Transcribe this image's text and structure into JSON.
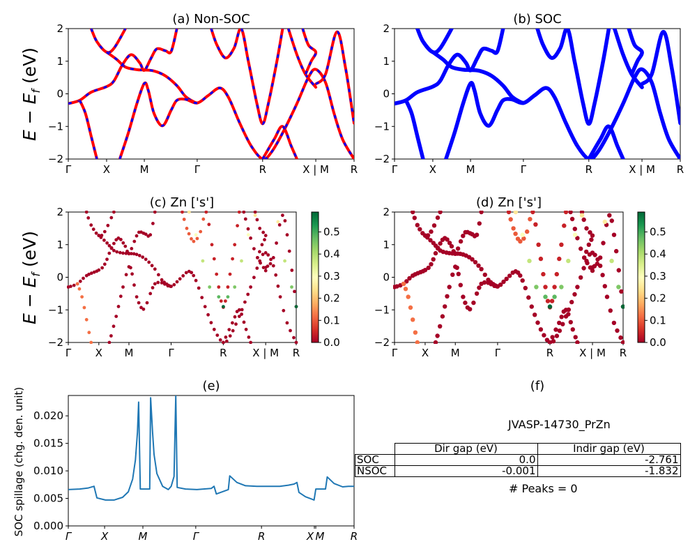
{
  "figure": {
    "panels": {
      "a": {
        "title": "(a) Non-SOC"
      },
      "b": {
        "title": "(b) SOC"
      },
      "c": {
        "title": "(c)  Zn ['s']"
      },
      "d": {
        "title": "(d) Zn ['s']"
      },
      "e": {
        "title": "(e)"
      },
      "f": {
        "title": "(f)"
      }
    },
    "band_ylabel": "E − E_f (eV)",
    "colors": {
      "nonsoc_line": "#ff0000",
      "nonsoc_dash": "#0000ff",
      "soc_line": "#0000ff",
      "spillage_line": "#1f77b4",
      "cmap_low": "#a50026",
      "cmap_mid": "#ffffbf",
      "cmap_high": "#006837"
    }
  },
  "chart_data": [
    {
      "id": "a",
      "type": "line",
      "title": "(a) Non-SOC",
      "xlabel": "",
      "ylabel": "E − E_f (eV)",
      "ylim": [
        -2,
        2
      ],
      "yticks": [
        "2",
        "1",
        "0",
        "−1",
        "−2"
      ],
      "ytick_values": [
        2,
        1,
        0,
        -1,
        -2
      ],
      "xticks": [
        "Γ",
        "X",
        "M",
        "Γ",
        "R",
        "X | M",
        "R"
      ],
      "xtick_positions": [
        0,
        0.134,
        0.266,
        0.451,
        0.68,
        0.866,
        1.0
      ],
      "style": "red line with blue dashes",
      "series": [
        {
          "name": "band-1",
          "points": [
            [
              0.08,
              2.0
            ],
            [
              0.1,
              1.6
            ],
            [
              0.134,
              1.28
            ],
            [
              0.16,
              1.4
            ],
            [
              0.2,
              2.0
            ]
          ]
        },
        {
          "name": "band-2",
          "points": [
            [
              0.134,
              1.28
            ],
            [
              0.17,
              1.05
            ],
            [
              0.2,
              0.82
            ],
            [
              0.24,
              0.74
            ],
            [
              0.266,
              0.73
            ],
            [
              0.3,
              0.7
            ],
            [
              0.34,
              0.55
            ],
            [
              0.38,
              0.25
            ],
            [
              0.41,
              -0.08
            ],
            [
              0.44,
              -0.25
            ],
            [
              0.451,
              -0.28
            ]
          ]
        },
        {
          "name": "band-3",
          "points": [
            [
              0,
              -0.3
            ],
            [
              0.04,
              -0.2
            ],
            [
              0.08,
              0.05
            ],
            [
              0.134,
              0.22
            ],
            [
              0.16,
              0.4
            ],
            [
              0.19,
              0.9
            ],
            [
              0.22,
              1.2
            ],
            [
              0.25,
              0.95
            ],
            [
              0.266,
              0.72
            ],
            [
              0.29,
              1.1
            ],
            [
              0.31,
              1.38
            ],
            [
              0.34,
              1.32
            ],
            [
              0.36,
              1.3
            ],
            [
              0.38,
              2.0
            ]
          ]
        },
        {
          "name": "band-4",
          "points": [
            [
              0.04,
              -0.2
            ],
            [
              0.06,
              -0.6
            ],
            [
              0.08,
              -1.3
            ],
            [
              0.1,
              -2.0
            ]
          ]
        },
        {
          "name": "band-5",
          "points": [
            [
              0.18,
              -2.0
            ],
            [
              0.21,
              -1.2
            ],
            [
              0.24,
              -0.3
            ],
            [
              0.266,
              0.32
            ],
            [
              0.28,
              0.1
            ],
            [
              0.3,
              -0.6
            ],
            [
              0.33,
              -0.98
            ],
            [
              0.36,
              -0.5
            ],
            [
              0.38,
              -0.2
            ],
            [
              0.41,
              -0.17
            ],
            [
              0.451,
              -0.28
            ],
            [
              0.49,
              -0.05
            ],
            [
              0.53,
              0.18
            ],
            [
              0.56,
              -0.1
            ],
            [
              0.6,
              -0.9
            ],
            [
              0.64,
              -1.6
            ],
            [
              0.68,
              -2.0
            ],
            [
              0.71,
              -1.8
            ],
            [
              0.75,
              -1.2
            ],
            [
              0.8,
              -0.3
            ],
            [
              0.84,
              0.5
            ],
            [
              0.866,
              0.75
            ],
            [
              0.9,
              0.35
            ],
            [
              0.93,
              -0.6
            ],
            [
              0.96,
              -1.4
            ],
            [
              1.0,
              -2.0
            ]
          ]
        },
        {
          "name": "band-6",
          "points": [
            [
              0.5,
              2.0
            ],
            [
              0.52,
              1.5
            ],
            [
              0.55,
              1.1
            ],
            [
              0.58,
              1.4
            ],
            [
              0.605,
              2.0
            ],
            [
              0.63,
              1.0
            ],
            [
              0.66,
              -0.3
            ],
            [
              0.68,
              -0.92
            ],
            [
              0.7,
              -0.3
            ],
            [
              0.73,
              1.0
            ],
            [
              0.75,
              2.0
            ]
          ]
        },
        {
          "name": "band-7",
          "points": [
            [
              0.68,
              -2.0
            ],
            [
              0.72,
              -1.4
            ],
            [
              0.75,
              -1.0
            ],
            [
              0.78,
              -1.6
            ],
            [
              0.8,
              -2.0
            ]
          ]
        },
        {
          "name": "band-8",
          "points": [
            [
              0.77,
              2.0
            ],
            [
              0.8,
              1.2
            ],
            [
              0.83,
              0.6
            ],
            [
              0.866,
              0.2
            ]
          ]
        },
        {
          "name": "band-9",
          "points": [
            [
              0.82,
              2.0
            ],
            [
              0.84,
              1.5
            ],
            [
              0.866,
              1.28
            ],
            [
              0.85,
              1.0
            ],
            [
              0.83,
              0.6
            ]
          ]
        },
        {
          "name": "band-10",
          "points": [
            [
              0.866,
              0.3
            ],
            [
              0.9,
              0.6
            ],
            [
              0.94,
              1.9
            ],
            [
              0.97,
              0.8
            ],
            [
              1.0,
              -0.9
            ]
          ]
        }
      ]
    },
    {
      "id": "b",
      "type": "line",
      "title": "(b) SOC",
      "ylim": [
        -2,
        2
      ],
      "yticks": [
        "2",
        "1",
        "0",
        "−1",
        "−2"
      ],
      "ytick_values": [
        2,
        1,
        0,
        -1,
        -2
      ],
      "xticks": [
        "Γ",
        "X",
        "M",
        "Γ",
        "R",
        "X | M",
        "R"
      ],
      "xtick_positions": [
        0,
        0.134,
        0.266,
        0.451,
        0.68,
        0.866,
        1.0
      ],
      "style": "thick blue lines",
      "series_ref": "same band topology as (a), spin-orbit split"
    },
    {
      "id": "c",
      "type": "scatter",
      "title": "(c)  Zn ['s']",
      "ylim": [
        -2,
        2
      ],
      "yticks": [
        "2",
        "1",
        "0",
        "−1",
        "−2"
      ],
      "ytick_values": [
        2,
        1,
        0,
        -1,
        -2
      ],
      "xticks": [
        "Γ",
        "X",
        "M",
        "Γ",
        "R",
        "X | M",
        "R"
      ],
      "xtick_positions": [
        0,
        0.134,
        0.266,
        0.451,
        0.68,
        0.866,
        1.0
      ],
      "colorbar": {
        "min": 0.0,
        "max": 0.59,
        "ticks": [
          "0.0",
          "0.1",
          "0.2",
          "0.3",
          "0.4",
          "0.5"
        ],
        "tick_values": [
          0,
          0.1,
          0.2,
          0.3,
          0.4,
          0.5
        ],
        "colormap": "RdYlGn"
      },
      "highlight_band": {
        "name": "Zn-s band",
        "points": [
          [
            0.53,
            2.0,
            0.25
          ],
          [
            0.56,
            1.3,
            0.3
          ],
          [
            0.59,
            0.5,
            0.38
          ],
          [
            0.62,
            -0.3,
            0.45
          ],
          [
            0.66,
            -0.6,
            0.48
          ],
          [
            0.68,
            -0.9,
            0.59
          ],
          [
            0.7,
            -0.6,
            0.48
          ],
          [
            0.73,
            -0.3,
            0.45
          ],
          [
            0.76,
            0.5,
            0.38
          ],
          [
            0.79,
            1.3,
            0.3
          ],
          [
            0.82,
            1.9,
            0.25
          ],
          [
            0.92,
            1.7,
            0.26
          ],
          [
            0.95,
            0.5,
            0.38
          ],
          [
            0.98,
            -0.3,
            0.45
          ],
          [
            1.0,
            -0.9,
            0.59
          ]
        ]
      }
    },
    {
      "id": "d",
      "type": "scatter",
      "title": "(d) Zn ['s']",
      "ylim": [
        -2,
        2
      ],
      "yticks": [
        "2",
        "1",
        "0",
        "−1",
        "−2"
      ],
      "ytick_values": [
        2,
        1,
        0,
        -1,
        -2
      ],
      "xticks": [
        "Γ",
        "X",
        "M",
        "Γ",
        "R",
        "X | M",
        "R"
      ],
      "xtick_positions": [
        0,
        0.134,
        0.266,
        0.451,
        0.68,
        0.866,
        1.0
      ],
      "colorbar": {
        "min": 0.0,
        "max": 0.59,
        "ticks": [
          "0.0",
          "0.1",
          "0.2",
          "0.3",
          "0.4",
          "0.5"
        ],
        "tick_values": [
          0,
          0.1,
          0.2,
          0.3,
          0.4,
          0.5
        ],
        "colormap": "RdYlGn"
      }
    },
    {
      "id": "e",
      "type": "line",
      "title": "(e)",
      "xlabel": "",
      "ylabel": "SOC spillage (chg. den. unit)",
      "ylim": [
        0,
        0.0237
      ],
      "yticks": [
        "0.000",
        "0.005",
        "0.010",
        "0.015",
        "0.020"
      ],
      "ytick_values": [
        0,
        0.005,
        0.01,
        0.015,
        0.02
      ],
      "xticks": [
        "Γ",
        "X",
        "M",
        "Γ",
        "R",
        "X",
        "M",
        "R"
      ],
      "xtick_positions": [
        0,
        0.127,
        0.261,
        0.446,
        0.676,
        0.861,
        0.866,
        1.0
      ],
      "series": [
        {
          "name": "spillage",
          "points": [
            [
              0,
              0.0066
            ],
            [
              0.04,
              0.0067
            ],
            [
              0.07,
              0.0069
            ],
            [
              0.09,
              0.0072
            ],
            [
              0.1,
              0.0051
            ],
            [
              0.13,
              0.0047
            ],
            [
              0.16,
              0.0047
            ],
            [
              0.19,
              0.0052
            ],
            [
              0.21,
              0.0062
            ],
            [
              0.225,
              0.0085
            ],
            [
              0.235,
              0.012
            ],
            [
              0.242,
              0.017
            ],
            [
              0.246,
              0.0225
            ],
            [
              0.252,
              0.0067
            ],
            [
              0.285,
              0.0067
            ],
            [
              0.288,
              0.0233
            ],
            [
              0.295,
              0.017
            ],
            [
              0.3,
              0.013
            ],
            [
              0.31,
              0.0095
            ],
            [
              0.33,
              0.0072
            ],
            [
              0.35,
              0.0066
            ],
            [
              0.36,
              0.0072
            ],
            [
              0.37,
              0.009
            ],
            [
              0.376,
              0.0237
            ],
            [
              0.381,
              0.007
            ],
            [
              0.41,
              0.0067
            ],
            [
              0.45,
              0.0066
            ],
            [
              0.5,
              0.0068
            ],
            [
              0.51,
              0.0072
            ],
            [
              0.518,
              0.0058
            ],
            [
              0.56,
              0.0066
            ],
            [
              0.565,
              0.0091
            ],
            [
              0.59,
              0.0079
            ],
            [
              0.62,
              0.0073
            ],
            [
              0.66,
              0.0072
            ],
            [
              0.7,
              0.0072
            ],
            [
              0.74,
              0.0072
            ],
            [
              0.77,
              0.0074
            ],
            [
              0.79,
              0.0076
            ],
            [
              0.8,
              0.0079
            ],
            [
              0.807,
              0.0061
            ],
            [
              0.83,
              0.0053
            ],
            [
              0.855,
              0.0048
            ],
            [
              0.86,
              0.0047
            ],
            [
              0.866,
              0.0067
            ],
            [
              0.9,
              0.0067
            ],
            [
              0.906,
              0.0089
            ],
            [
              0.93,
              0.0077
            ],
            [
              0.96,
              0.0071
            ],
            [
              0.98,
              0.0072
            ],
            [
              1.0,
              0.0072
            ]
          ]
        }
      ]
    },
    {
      "id": "f",
      "type": "table",
      "title": "(f)",
      "caption": "JVASP-14730_PrZn",
      "columns": [
        "Dir gap (eV)",
        "Indir gap (eV)"
      ],
      "rows": [
        {
          "label": "SOC",
          "values": [
            "0.0",
            "-2.761"
          ]
        },
        {
          "label": "NSOC",
          "values": [
            "-0.001",
            "-1.832"
          ]
        }
      ],
      "footer": "# Peaks = 0"
    }
  ]
}
